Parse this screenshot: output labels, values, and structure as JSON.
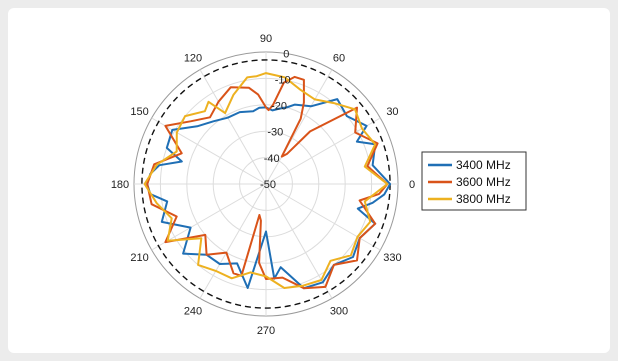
{
  "chart_data": {
    "type": "polar-line",
    "theta_unit": "degrees",
    "r_unit": "dB",
    "rlim": [
      -50,
      0
    ],
    "r_ticks": [
      "0",
      "-10",
      "-20",
      "-30",
      "-40",
      "-50"
    ],
    "theta_ticks": [
      "0",
      "30",
      "60",
      "90",
      "120",
      "150",
      "180",
      "210",
      "240",
      "270",
      "300",
      "330"
    ],
    "grid": true,
    "reference_circle_dB": -3,
    "legend_position": "right",
    "series": [
      {
        "name": "3400 MHz",
        "color": "#1f6fb5",
        "theta": [
          0,
          10,
          20,
          25,
          30,
          40,
          50,
          60,
          70,
          75,
          80,
          85,
          90,
          95,
          100,
          110,
          120,
          130,
          140,
          150,
          160,
          165,
          170,
          175,
          180,
          185,
          190,
          200,
          210,
          220,
          230,
          240,
          250,
          260,
          270,
          275,
          280,
          290,
          300,
          310,
          320,
          330,
          340,
          345,
          350,
          355
        ],
        "r": [
          -3,
          -9,
          -6,
          -12,
          -6,
          -10,
          -8,
          -16,
          -18,
          -20,
          -21,
          -22,
          -21,
          -21,
          -22,
          -21,
          -21,
          -19,
          -16,
          -9,
          -10,
          -17,
          -9,
          -6,
          -5,
          -6,
          -12,
          -8,
          -17,
          -9,
          -15,
          -15,
          -18,
          -10,
          -32,
          -14,
          -18,
          -8,
          -7,
          -10,
          -7,
          -9,
          -6,
          -14,
          -9,
          -5
        ]
      },
      {
        "name": "3600 MHz",
        "color": "#d95319",
        "theta": [
          0,
          10,
          20,
          30,
          40,
          50,
          55,
          60,
          62,
          65,
          70,
          75,
          80,
          85,
          88,
          90,
          95,
          100,
          110,
          120,
          130,
          140,
          150,
          160,
          170,
          180,
          190,
          200,
          210,
          220,
          230,
          240,
          250,
          255,
          258,
          262,
          265,
          270,
          280,
          290,
          300,
          310,
          320,
          330,
          340,
          350,
          355
        ],
        "r": [
          -4,
          -11,
          -5,
          -11,
          -5,
          -24,
          -36,
          -38,
          -22,
          -16,
          -8,
          -8,
          -11,
          -20,
          -22,
          -21,
          -16,
          -13,
          -11,
          -14,
          -17,
          -13,
          -6,
          -16,
          -7,
          -5,
          -6,
          -14,
          -6,
          -20,
          -15,
          -20,
          -14,
          -14,
          -38,
          -36,
          -20,
          -14,
          -14,
          -8,
          -5,
          -10,
          -5,
          -9,
          -6,
          -14,
          -7
        ]
      },
      {
        "name": "3800 MHz",
        "color": "#edb120",
        "theta": [
          0,
          10,
          20,
          30,
          40,
          50,
          60,
          70,
          80,
          90,
          95,
          100,
          110,
          120,
          125,
          130,
          140,
          150,
          160,
          170,
          180,
          190,
          200,
          210,
          220,
          230,
          240,
          250,
          260,
          270,
          280,
          290,
          300,
          310,
          320,
          330,
          340,
          350
        ],
        "r": [
          -4,
          -12,
          -6,
          -8,
          -6,
          -10,
          -13,
          -12,
          -9,
          -8,
          -9,
          -9,
          -14,
          -19,
          -12,
          -14,
          -10,
          -11,
          -14,
          -8,
          -4,
          -8,
          -12,
          -7,
          -18,
          -10,
          -12,
          -12,
          -16,
          -15,
          -10,
          -9,
          -8,
          -12,
          -8,
          -10,
          -8,
          -12
        ]
      }
    ]
  }
}
